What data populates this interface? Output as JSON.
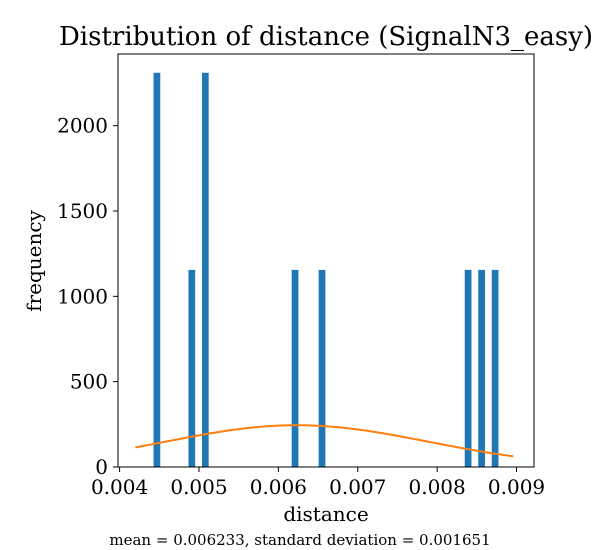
{
  "chart_data": {
    "type": "bar",
    "title": "Distribution of distance (SignalN3_easy)",
    "xlabel": "distance",
    "ylabel": "frequency",
    "caption": "mean = 0.006233, standard deviation = 0.001651",
    "xlim": [
      0.00398,
      0.00922
    ],
    "ylim": [
      0,
      2420
    ],
    "x_ticks": [
      0.004,
      0.005,
      0.006,
      0.007,
      0.008,
      0.009
    ],
    "x_tick_labels": [
      "0.004",
      "0.005",
      "0.006",
      "0.007",
      "0.008",
      "0.009"
    ],
    "y_ticks": [
      0,
      500,
      1000,
      1500,
      2000
    ],
    "y_tick_labels": [
      "0",
      "500",
      "1000",
      "1500",
      "2000"
    ],
    "bin_width": 8.46e-05,
    "bars": [
      {
        "x": 0.00447,
        "value": 2310
      },
      {
        "x": 0.00491,
        "value": 1155
      },
      {
        "x": 0.00508,
        "value": 2310
      },
      {
        "x": 0.00621,
        "value": 1155
      },
      {
        "x": 0.00655,
        "value": 1155
      },
      {
        "x": 0.00839,
        "value": 1155
      },
      {
        "x": 0.00856,
        "value": 1155
      },
      {
        "x": 0.00873,
        "value": 1155
      }
    ],
    "bar_color": "#1f77b4",
    "curve": {
      "type": "normal-pdf-scaled",
      "mean": 0.006233,
      "std": 0.001651,
      "peak": 245,
      "x_start": 0.0042,
      "x_end": 0.00896,
      "color": "#ff7f0e"
    },
    "grid": false,
    "legend": "none"
  }
}
